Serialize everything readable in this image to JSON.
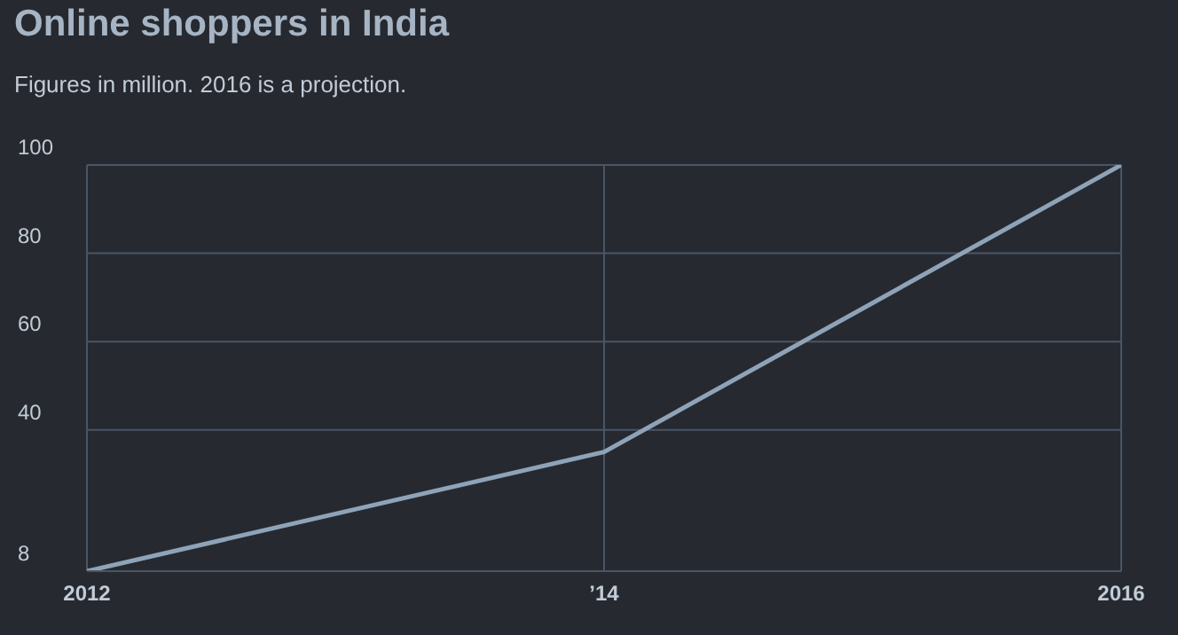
{
  "chart_data": {
    "type": "line",
    "title": "Online shoppers in India",
    "subtitle": "Figures in million. 2016 is a projection.",
    "x": [
      2012,
      2014,
      2016
    ],
    "series": [
      {
        "color": "#8fa3b8",
        "values": [
          8,
          35,
          100
        ]
      }
    ],
    "xlim": [
      2012,
      2016
    ],
    "xticks": [
      2012,
      {
        "value": 2014,
        "label": "’14"
      },
      2016
    ],
    "ylim": [
      8,
      100
    ],
    "yticks": [
      8,
      40,
      60,
      80,
      100
    ],
    "grid": true,
    "marker": "none",
    "line_style": "solid"
  }
}
